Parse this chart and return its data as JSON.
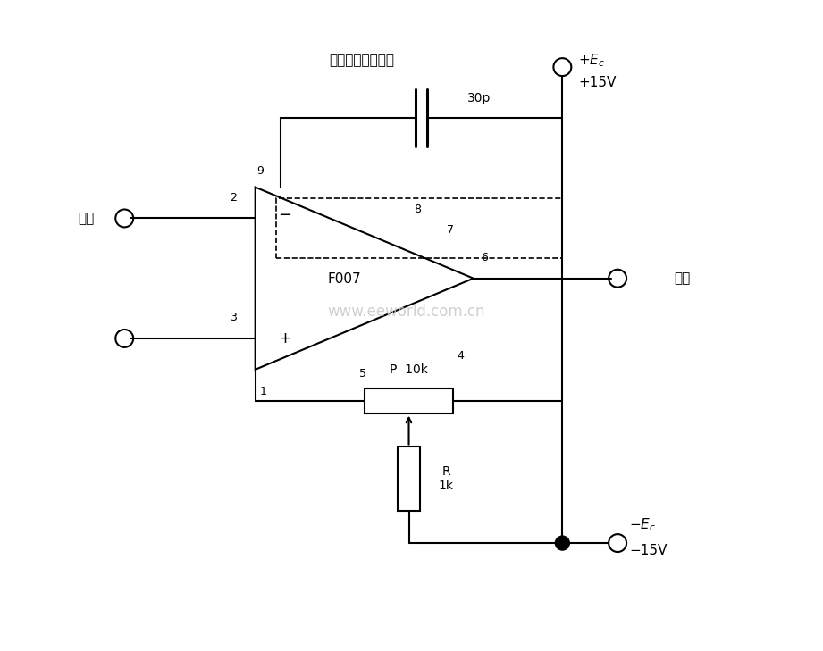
{
  "background_color": "#ffffff",
  "line_color": "#000000",
  "watermark_text": "www.eeworld.com.cn",
  "label_wunei": "（无内补偿时用）",
  "label_input": "输入",
  "label_output": "输出",
  "label_f007": "F007",
  "label_p10k": "P  10k",
  "label_r1k": "R\n1k",
  "label_30p": "30p",
  "label_pos_ec": "+E",
  "label_pos_15v": "+15V",
  "label_neg_ec": "-E",
  "label_neg_15v": "-15V"
}
